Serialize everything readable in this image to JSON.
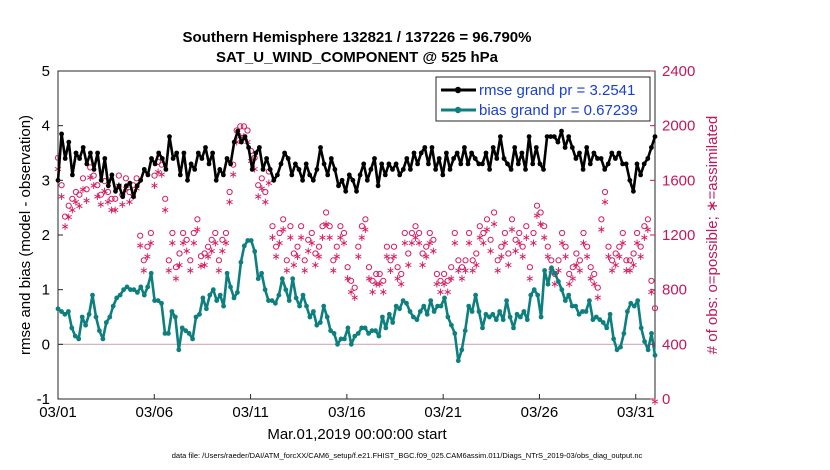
{
  "chart_data": {
    "type": "line",
    "title_line1": "Southern Hemisphere 132821 / 137226 = 96.790%",
    "title_line2": "SAT_U_WIND_COMPONENT @ 525 hPa",
    "xlabel": "Mar.01,2019 00:00:00 start",
    "ylabel": "rmse and bias (model - observation)",
    "ylabel_right": "# of obs: o=possible; ∗=assimilated",
    "x_ticks": [
      "03/01",
      "03/06",
      "03/11",
      "03/16",
      "03/21",
      "03/26",
      "03/31"
    ],
    "y_ticks": [
      "-1",
      "0",
      "1",
      "2",
      "3",
      "4",
      "5"
    ],
    "y_right_ticks": [
      "0",
      "400",
      "800",
      "1200",
      "1600",
      "2000",
      "2400"
    ],
    "ylim": [
      -1,
      5
    ],
    "ylim_right": [
      0,
      2400
    ],
    "xlim": [
      0,
      31
    ],
    "legend": [
      {
        "label": "rmse grand pr = 3.2541",
        "color": "#000000"
      },
      {
        "label": "bias grand pr = 0.67239",
        "color": "#0e7f7f"
      }
    ],
    "colors": {
      "rmse": "#000000",
      "bias": "#0e7f7f",
      "obs": "#d81b60",
      "zero_line": "#d6a8b4"
    },
    "series": [
      {
        "name": "rmse",
        "values": [
          3.0,
          3.85,
          3.4,
          3.7,
          3.1,
          3.5,
          3.4,
          3.6,
          3.3,
          3.5,
          3.2,
          3.5,
          3.0,
          3.4,
          2.9,
          3.1,
          2.8,
          2.9,
          2.7,
          2.9,
          2.95,
          2.7,
          2.9,
          3.0,
          3.2,
          3.1,
          3.4,
          3.3,
          3.5,
          3.4,
          3.2,
          3.8,
          3.4,
          3.5,
          3.1,
          3.5,
          3.0,
          3.3,
          3.2,
          3.5,
          3.4,
          3.6,
          3.3,
          3.5,
          3.0,
          3.2,
          3.1,
          3.4,
          3.3,
          3.7,
          3.9,
          3.7,
          3.8,
          3.6,
          3.2,
          3.5,
          3.6,
          3.2,
          3.4,
          3.2,
          3.0,
          3.1,
          3.3,
          3.5,
          3.4,
          3.1,
          3.3,
          3.2,
          3.0,
          3.3,
          3.1,
          3.0,
          3.2,
          3.6,
          3.3,
          3.1,
          3.4,
          3.2,
          2.9,
          3.0,
          2.8,
          3.1,
          3.0,
          2.8,
          3.1,
          3.3,
          3.0,
          3.2,
          3.4,
          2.9,
          3.3,
          3.1,
          3.3,
          3.2,
          3.3,
          3.1,
          3.2,
          3.4,
          3.2,
          3.5,
          3.3,
          3.5,
          3.6,
          3.3,
          3.6,
          3.2,
          3.4,
          3.1,
          3.5,
          3.2,
          3.4,
          3.5,
          3.3,
          3.6,
          3.3,
          3.5,
          3.4,
          3.3,
          3.3,
          3.5,
          3.2,
          3.6,
          3.4,
          3.8,
          3.4,
          3.3,
          3.2,
          3.6,
          3.3,
          3.5,
          3.2,
          3.8,
          3.3,
          3.6,
          3.3,
          3.2,
          3.8,
          3.8,
          3.8,
          3.7,
          3.9,
          3.6,
          3.8,
          3.6,
          3.4,
          3.5,
          3.2,
          3.6,
          3.3,
          3.5,
          3.4,
          3.4,
          3.2,
          3.3,
          3.5,
          3.4,
          3.5,
          3.3,
          3.3,
          3.0,
          2.8,
          3.3,
          3.1,
          3.3,
          3.4,
          3.6,
          3.8
        ]
      },
      {
        "name": "bias",
        "values": [
          0.65,
          0.6,
          0.55,
          0.6,
          0.3,
          0.15,
          0.1,
          0.5,
          0.35,
          0.55,
          0.9,
          0.5,
          0.25,
          0.1,
          0.4,
          0.5,
          0.7,
          0.85,
          0.9,
          1.0,
          1.05,
          1.0,
          1.0,
          0.95,
          1.05,
          0.9,
          1.05,
          1.3,
          0.8,
          0.8,
          0.75,
          0.2,
          0.2,
          0.6,
          0.5,
          -0.1,
          0.3,
          0.25,
          0.2,
          0.1,
          0.5,
          0.55,
          0.85,
          0.65,
          0.9,
          1.0,
          0.8,
          0.9,
          0.7,
          1.3,
          1.05,
          0.85,
          0.95,
          1.5,
          1.8,
          1.9,
          1.9,
          1.7,
          1.2,
          1.3,
          1.0,
          0.8,
          0.8,
          0.75,
          0.9,
          1.2,
          1.0,
          0.8,
          1.2,
          0.85,
          0.7,
          0.9,
          0.7,
          0.5,
          0.6,
          0.35,
          0.4,
          0.7,
          0.5,
          0.25,
          0.2,
          0.0,
          0.1,
          0.1,
          0.3,
          0.0,
          0.15,
          0.2,
          0.3,
          0.3,
          0.2,
          0.25,
          0.25,
          0.15,
          0.5,
          0.3,
          0.55,
          0.4,
          0.7,
          0.65,
          0.8,
          0.75,
          0.6,
          0.5,
          0.45,
          0.6,
          0.7,
          0.55,
          0.8,
          0.6,
          0.7,
          0.7,
          0.85,
          0.5,
          0.35,
          0.2,
          -0.3,
          -0.1,
          0.25,
          0.7,
          0.6,
          0.9,
          0.6,
          0.3,
          0.55,
          0.5,
          0.55,
          0.45,
          0.6,
          0.45,
          0.8,
          0.5,
          0.3,
          0.55,
          0.5,
          0.6,
          0.45,
          0.9,
          1.0,
          0.9,
          0.5,
          1.35,
          1.1,
          1.4,
          1.3,
          1.15,
          1.0,
          0.8,
          0.9,
          0.7,
          0.7,
          0.55,
          0.6,
          0.6,
          0.8,
          0.45,
          0.5,
          0.45,
          0.4,
          0.3,
          0.55,
          0.1,
          -0.1,
          -0.05,
          0.2,
          0.6,
          0.75,
          0.7,
          0.8,
          0.3,
          0.05,
          -0.1,
          0.2,
          -0.2
        ]
      },
      {
        "name": "possible",
        "values": [
          1750,
          1550,
          1320,
          1400,
          1450,
          1500,
          1480,
          1600,
          1520,
          1680,
          1620,
          1550,
          1480,
          1580,
          1500,
          1450,
          1450,
          1620,
          1480,
          1600,
          1500,
          1550,
          1600,
          1180,
          1000,
          1100,
          1200,
          1620,
          1720,
          1700,
          1450,
          1000,
          1200,
          950,
          1050,
          1200,
          1150,
          1000,
          1200,
          1300,
          1030,
          1050,
          1100,
          1150,
          1200,
          1000,
          1150,
          1200,
          1500,
          1700,
          1950,
          1980,
          1980,
          1950,
          1800,
          1750,
          1550,
          1600,
          1500,
          1650,
          1250,
          1100,
          1200,
          1300,
          1000,
          1250,
          1050,
          1100,
          1250,
          1000,
          1150,
          1200,
          1050,
          1100,
          1250,
          1350,
          1250,
          1000,
          1100,
          1250,
          1200,
          950,
          850,
          800,
          1100,
          1250,
          1300,
          950,
          850,
          900,
          900,
          850,
          1100,
          1000,
          1100,
          950,
          900,
          1200,
          1050,
          1200,
          1250,
          1200,
          1050,
          1100,
          1200,
          1150,
          900,
          850,
          900,
          850,
          950,
          1200,
          1000,
          950,
          1000,
          1200,
          1000,
          1050,
          1250,
          1200,
          1300,
          1150,
          1350,
          1000,
          1100,
          1200,
          1050,
          1300,
          1150,
          1200,
          1100,
          1250,
          950,
          1200,
          1400,
          1350,
          1250,
          1100,
          1000,
          900,
          1000,
          1200,
          1100,
          900,
          950,
          1050,
          1000,
          1200,
          1100,
          950,
          900,
          800,
          1300,
          1500,
          1100,
          1000,
          1050,
          1100,
          1200,
          1000,
          1000,
          1050,
          1200,
          1100,
          1250,
          1300,
          850,
          650
        ]
      },
      {
        "name": "assimilated",
        "values": [
          1700,
          1500,
          1280,
          1350,
          1400,
          1460,
          1430,
          1550,
          1470,
          1640,
          1580,
          1500,
          1440,
          1540,
          1460,
          1400,
          1400,
          1580,
          1440,
          1560,
          1460,
          1500,
          1560,
          1140,
          960,
          1060,
          1160,
          1580,
          1680,
          1660,
          1400,
          960,
          1160,
          900,
          1000,
          1160,
          1100,
          960,
          1160,
          1260,
          990,
          1000,
          1060,
          1100,
          1160,
          960,
          1100,
          1160,
          1460,
          1660,
          1900,
          1940,
          1940,
          1900,
          1760,
          1700,
          1500,
          1560,
          1460,
          1600,
          1200,
          1060,
          1160,
          1260,
          960,
          1200,
          1000,
          1060,
          1200,
          960,
          1100,
          1160,
          1000,
          1060,
          1200,
          1300,
          1200,
          960,
          1060,
          1200,
          1160,
          900,
          800,
          760,
          1060,
          1200,
          1260,
          900,
          800,
          860,
          860,
          800,
          1060,
          960,
          1060,
          900,
          860,
          1160,
          1000,
          1160,
          1200,
          1160,
          1000,
          1060,
          1160,
          1100,
          860,
          800,
          860,
          800,
          900,
          1160,
          960,
          900,
          960,
          1160,
          960,
          1000,
          1200,
          1160,
          1260,
          1100,
          1300,
          960,
          1060,
          1160,
          1000,
          1260,
          1100,
          1160,
          1060,
          1200,
          900,
          1160,
          1360,
          1300,
          1200,
          1060,
          960,
          860,
          960,
          1160,
          1060,
          860,
          900,
          1000,
          960,
          1160,
          1060,
          900,
          860,
          760,
          1260,
          1460,
          1060,
          960,
          1000,
          1060,
          1160,
          960,
          960,
          1000,
          1160,
          1060,
          1200,
          1260,
          800,
          0
        ]
      }
    ]
  },
  "footer": "data file: /Users/raeder/DAI/ATM_forcXX/CAM6_setup/f.e21.FHIST_BGC.f09_025.CAM6assim.011/Diags_NTrS_2019-03/obs_diag_output.nc"
}
